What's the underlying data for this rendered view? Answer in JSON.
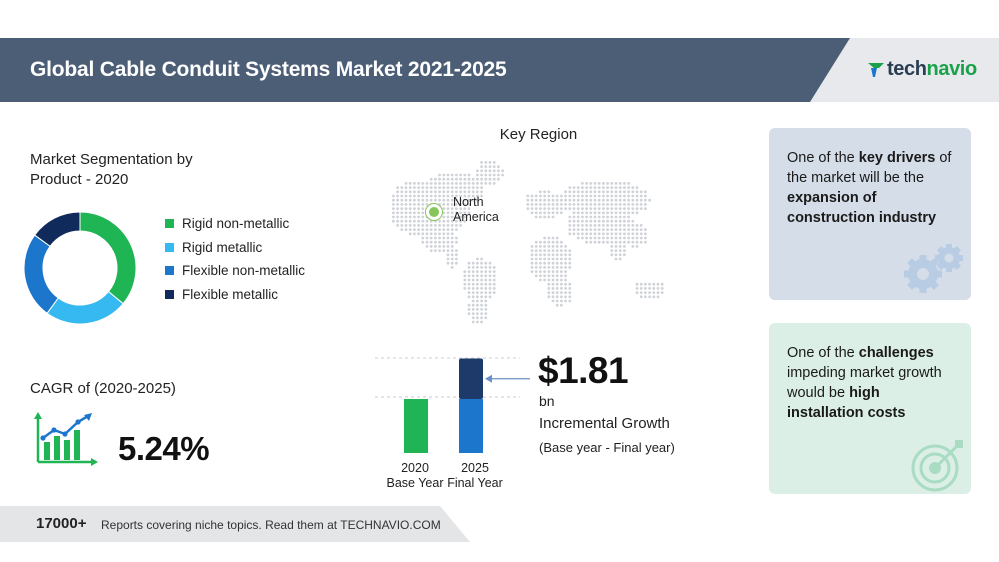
{
  "header": {
    "title": "Global Cable Conduit Systems Market 2021-2025",
    "logo_prefix": "tech",
    "logo_accent": "navio"
  },
  "segmentation": {
    "title_line1": "Market Segmentation by",
    "title_line2": "Product - 2020",
    "items": [
      {
        "label": "Rigid non-metallic",
        "color": "#1fb554"
      },
      {
        "label": "Rigid metallic",
        "color": "#35b9f0"
      },
      {
        "label": "Flexible non-metallic",
        "color": "#1c77cc"
      },
      {
        "label": "Flexible metallic",
        "color": "#112a5c"
      }
    ]
  },
  "cagr": {
    "title": "CAGR of (2020-2025)",
    "value": "5.24%"
  },
  "region": {
    "title": "Key Region",
    "label_line1": "North",
    "label_line2": "America",
    "marker_color": "#86c55a"
  },
  "growth": {
    "value": "$1.81",
    "unit": "bn",
    "caption": "Incremental Growth",
    "sub": "(Base year - Final year)"
  },
  "chart_data": [
    {
      "type": "pie",
      "title": "Market Segmentation by Product - 2020",
      "categories": [
        "Rigid non-metallic",
        "Rigid metallic",
        "Flexible non-metallic",
        "Flexible metallic"
      ],
      "values": [
        36,
        24,
        25,
        15
      ],
      "colors": [
        "#1fb554",
        "#35b9f0",
        "#1c77cc",
        "#112a5c"
      ]
    },
    {
      "type": "bar",
      "categories": [
        "2020 Base Year",
        "2025 Final Year"
      ],
      "labels_line1": [
        "2020",
        "2025"
      ],
      "labels_line2": [
        "Base Year",
        "Final Year"
      ],
      "series": [
        {
          "values": [
            1,
            1
          ],
          "color_2020": "#1fb554",
          "color_2025": "#1c77cc"
        },
        {
          "values": [
            0,
            0.75
          ],
          "color": "#1e3a6b"
        }
      ]
    }
  ],
  "cards": {
    "drivers": {
      "pre": "One of the ",
      "key": "key drivers",
      "mid": " of the market will be the ",
      "bold": "expansion of construction industry",
      "icon": "gears-icon"
    },
    "challenges": {
      "pre": "One of the ",
      "key": "challenges",
      "mid": " impeding market growth would be ",
      "bold": "high installation costs",
      "icon": "target-icon"
    }
  },
  "footer": {
    "count": "17000+",
    "text": "Reports covering niche topics. Read them at TECHNAVIO.COM"
  }
}
